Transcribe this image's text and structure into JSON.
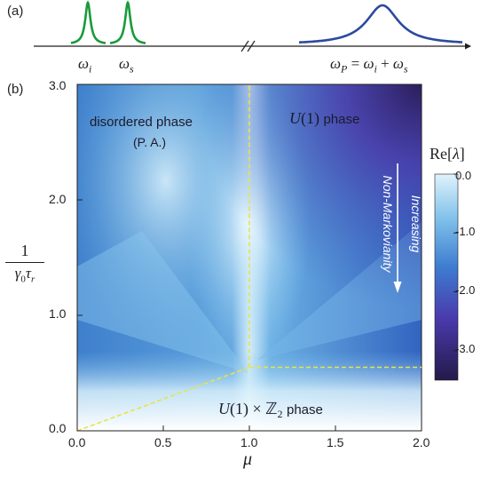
{
  "panel_a": {
    "label": "(a)",
    "omega_i": "ωi",
    "omega_s": "ωs",
    "omega_p_formula": "ωP = ωi + ωs",
    "peak_color": "#1a9b3a",
    "pump_color": "#2b4a9f"
  },
  "chart_data": {
    "type": "heatmap",
    "panel_label": "(b)",
    "xlabel": "μ",
    "ylabel": "1 / (γ0 τr)",
    "ylabel_numerator": "1",
    "ylabel_denominator": "γ0τr",
    "xlim": [
      0.0,
      2.0
    ],
    "ylim": [
      0.0,
      3.0
    ],
    "xticks": [
      "0.0",
      "0.5",
      "1.0",
      "1.5",
      "2.0"
    ],
    "yticks": [
      "0.0",
      "1.0",
      "2.0",
      "3.0"
    ],
    "colorbar": {
      "title": "Re[λ]",
      "ticks": [
        "0.0",
        "-1.0",
        "-2.0",
        "-3.0"
      ],
      "range": [
        -3.5,
        0.0
      ],
      "colors": [
        "#dff3fc",
        "#5aa6dc",
        "#3a6fc8",
        "#4a2a9c",
        "#241a4a"
      ]
    },
    "phase_boundaries": [
      {
        "from": [
          0.0,
          0.0
        ],
        "to": [
          1.0,
          0.55
        ]
      },
      {
        "from": [
          1.0,
          0.55
        ],
        "to": [
          2.0,
          0.55
        ]
      },
      {
        "from": [
          1.0,
          0.55
        ],
        "to": [
          1.0,
          3.0
        ]
      }
    ],
    "boundary_color": "#e7e34a",
    "regions": {
      "disordered": "disordered phase",
      "disordered_sub": "(P. A.)",
      "u1": "U(1)",
      "u1_suffix": "phase",
      "u1z2": "U(1) × ℤ2",
      "u1z2_suffix": "phase"
    },
    "arrow_text_1": "Increasing",
    "arrow_text_2": "Non-Markovianity"
  }
}
